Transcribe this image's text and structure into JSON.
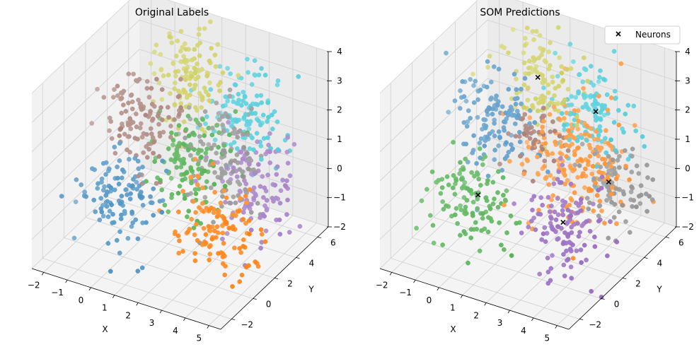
{
  "chart_data": [
    {
      "type": "scatter3d",
      "title": "Original Labels",
      "xlabel": "X",
      "ylabel": "Y",
      "zlabel": "",
      "xlim": [
        -2.5,
        5.5
      ],
      "ylim": [
        -3,
        7
      ],
      "zlim": [
        -2,
        4
      ],
      "xticks": [
        "−2",
        "−1",
        "0",
        "1",
        "2",
        "3",
        "4",
        "5"
      ],
      "yticks": [
        "−2",
        "0",
        "2",
        "4",
        "6"
      ],
      "zticks": [
        "−2",
        "−1",
        "0",
        "1",
        "2",
        "3",
        "4"
      ],
      "legend": null,
      "series": [
        {
          "color": "#1f77b4",
          "center": [
            0,
            0,
            0
          ],
          "spread": 0.8,
          "n": 120
        },
        {
          "color": "#ff7f0e",
          "center": [
            4,
            0,
            0
          ],
          "spread": 0.8,
          "n": 120
        },
        {
          "color": "#2ca02c",
          "center": [
            2,
            2,
            1
          ],
          "spread": 0.8,
          "n": 120
        },
        {
          "color": "#8c564b",
          "center": [
            0,
            2,
            2
          ],
          "spread": 0.8,
          "n": 120
        },
        {
          "color": "#9467bd",
          "center": [
            4,
            4,
            0
          ],
          "spread": 0.8,
          "n": 120
        },
        {
          "color": "#7f7f7f",
          "center": [
            3,
            3,
            1
          ],
          "spread": 0.8,
          "n": 120
        },
        {
          "color": "#bcbd22",
          "center": [
            1,
            4,
            3
          ],
          "spread": 0.8,
          "n": 120
        },
        {
          "color": "#17becf",
          "center": [
            3,
            5,
            2
          ],
          "spread": 0.8,
          "n": 120
        }
      ]
    },
    {
      "type": "scatter3d",
      "title": "SOM Predictions",
      "xlabel": "X",
      "ylabel": "Y",
      "zlabel": "",
      "xlim": [
        -2.5,
        5.5
      ],
      "ylim": [
        -3,
        7
      ],
      "zlim": [
        -2,
        4
      ],
      "xticks": [
        "−2",
        "−1",
        "0",
        "1",
        "2",
        "3",
        "4",
        "5"
      ],
      "yticks": [
        "−2",
        "0",
        "2",
        "4",
        "6"
      ],
      "zticks": [
        "−2",
        "−1",
        "0",
        "1",
        "2",
        "3",
        "4"
      ],
      "legend": {
        "label": "Neurons",
        "marker": "x",
        "placement": "top-right"
      },
      "series": [
        {
          "color": "#2ca02c",
          "center": [
            0,
            0,
            0
          ],
          "spread": 0.8,
          "n": 120
        },
        {
          "color": "#9467bd",
          "center": [
            4,
            0,
            0
          ],
          "spread": 0.8,
          "n": 120
        },
        {
          "color": "#ff7f0e",
          "center": [
            3,
            3,
            1
          ],
          "spread": 1.0,
          "n": 200
        },
        {
          "color": "#1f77b4",
          "center": [
            0,
            2,
            2
          ],
          "spread": 0.8,
          "n": 130
        },
        {
          "color": "#7f7f7f",
          "center": [
            4.2,
            4,
            0
          ],
          "spread": 0.7,
          "n": 90
        },
        {
          "color": "#bcbd22",
          "center": [
            1,
            4,
            3
          ],
          "spread": 0.8,
          "n": 110
        },
        {
          "color": "#17becf",
          "center": [
            3,
            5,
            2
          ],
          "spread": 0.8,
          "n": 120
        },
        {
          "color": "#8c564b",
          "center": [
            1.5,
            2.5,
            1.5
          ],
          "spread": 0.6,
          "n": 50
        }
      ],
      "neurons": [
        [
          0.2,
          0.2,
          0.1
        ],
        [
          3.8,
          0.2,
          0.1
        ],
        [
          4.0,
          4.0,
          0.2
        ],
        [
          1.0,
          4.0,
          3.0
        ],
        [
          3.0,
          5.0,
          2.0
        ]
      ]
    }
  ]
}
